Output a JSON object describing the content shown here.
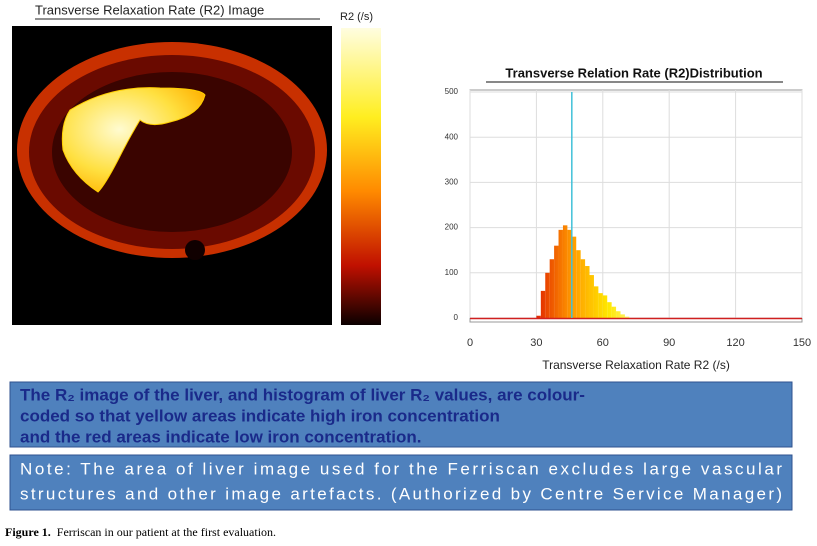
{
  "image_panel": {
    "title": "Transverse Relaxation Rate (R2) Image",
    "colorbar_label": "R2 (/s)"
  },
  "chart_data": {
    "type": "histogram",
    "title": "Transverse Relation Rate (R2)Distribution",
    "x_label": "Transverse Relaxation Rate R2 (/s)",
    "bins": [
      30,
      32,
      34,
      36,
      38,
      40,
      42,
      44,
      46,
      48,
      50,
      52,
      54,
      56,
      58,
      60,
      62,
      64,
      66,
      68,
      70,
      72
    ],
    "values": [
      5,
      60,
      100,
      130,
      160,
      195,
      205,
      195,
      180,
      150,
      130,
      115,
      95,
      70,
      55,
      50,
      35,
      25,
      15,
      8,
      3
    ],
    "vline": 46,
    "xlim": [
      0,
      150
    ],
    "xticks": [
      0,
      30,
      60,
      90,
      120,
      150
    ],
    "ylim": [
      0,
      500
    ],
    "yticks": [
      0,
      100,
      200,
      300,
      400,
      500
    ],
    "grid": true
  },
  "note_box_1": {
    "lines": [
      "The R₂ image of the liver, and histogram of liver R₂ values, are colour-",
      "coded so that yellow areas indicate high iron concentration",
      "and the red areas indicate low iron concentration."
    ]
  },
  "note_box_2": {
    "lines": [
      "Note: The area of liver image used for the Ferriscan excludes large vascular",
      "structures and other image artefacts. (Authorized by Centre Service Manager)"
    ]
  },
  "caption": {
    "label": "Figure 1.",
    "text": "Ferriscan in our patient at the first evaluation."
  }
}
